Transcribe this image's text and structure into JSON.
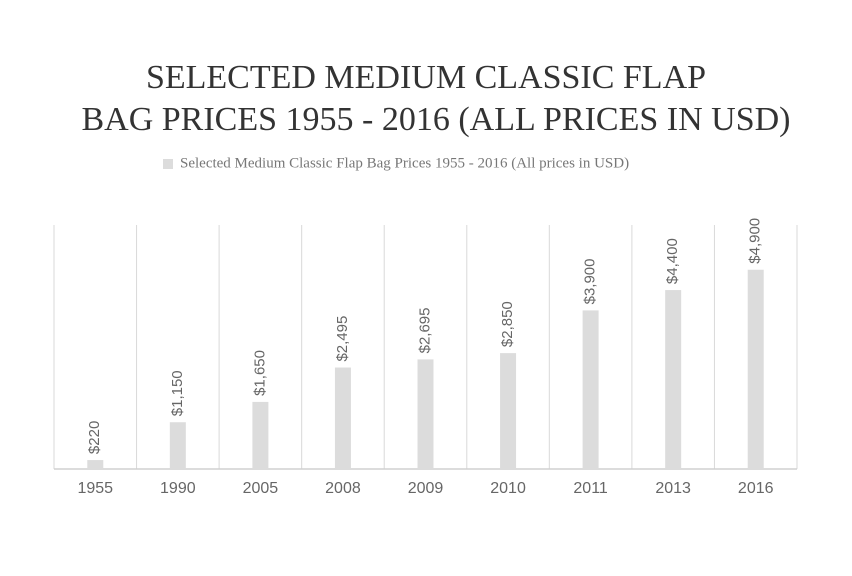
{
  "chart_data": {
    "type": "bar",
    "title": [
      "SELECTED MEDIUM CLASSIC FLAP",
      "BAG PRICES 1955 - 2016 (ALL PRICES IN USD)"
    ],
    "categories": [
      "1955",
      "1990",
      "2005",
      "2008",
      "2009",
      "2010",
      "2011",
      "2013",
      "2016"
    ],
    "series": [
      {
        "name": "Selected Medium Classic Flap Bag Prices 1955 - 2016 (All prices in USD)",
        "color": "#dcdcdc",
        "values": [
          220,
          1150,
          1650,
          2495,
          2695,
          2850,
          3900,
          4400,
          4900
        ],
        "value_labels": [
          "$220",
          "$1,150",
          "$1,650",
          "$2,495",
          "$2,695",
          "$2,850",
          "$3,900",
          "$4,400",
          "$4,900"
        ]
      }
    ],
    "ylim": [
      0,
      6000
    ],
    "legend": "top"
  }
}
